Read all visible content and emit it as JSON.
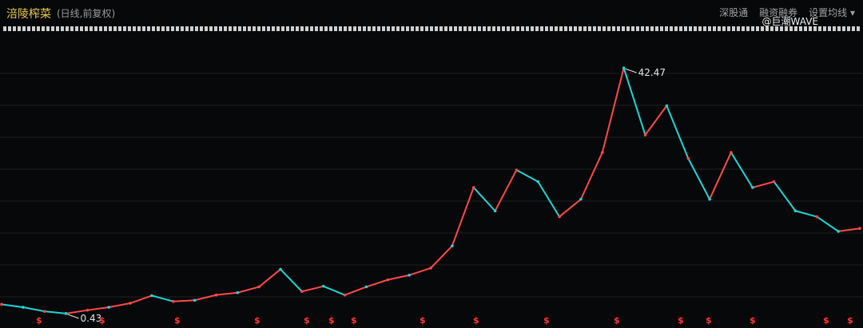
{
  "header": {
    "title": "涪陵榨菜",
    "subtitle": "(日线,前复权)",
    "menu": [
      "深股通",
      "融资融券",
      "设置均线"
    ],
    "dropdown_icon": "chevron-down-icon"
  },
  "watermark": "@巨潮WAVE",
  "markers": {
    "icon": "dollar-sign-icon",
    "label": "$",
    "count": 16,
    "color": "#ff3838"
  },
  "colors": {
    "background": "#07080a",
    "up": "#ff4a4a",
    "down": "#20d6d6",
    "grid": "#202123",
    "annotation": "#e6e6e6"
  },
  "chart_data": {
    "type": "line",
    "title": "",
    "xlabel": "",
    "ylabel": "",
    "ylim": [
      0,
      47
    ],
    "grid": true,
    "series": [
      {
        "name": "",
        "x": [
          0,
          5,
          10,
          15,
          20,
          25,
          30,
          35,
          40,
          45,
          50,
          55,
          60,
          65,
          70,
          75,
          80,
          85,
          90,
          95,
          100,
          105,
          110,
          115,
          120,
          125,
          130,
          135,
          140,
          145,
          150,
          155,
          160,
          165,
          170,
          175,
          180,
          185,
          190,
          195,
          200
        ],
        "values": [
          2.0,
          1.5,
          0.8,
          0.43,
          1.0,
          1.5,
          2.2,
          3.5,
          2.5,
          2.7,
          3.6,
          4.0,
          5.0,
          8.0,
          4.2,
          5.1,
          3.6,
          5.0,
          6.2,
          7.0,
          8.2,
          12.0,
          22.0,
          18.0,
          25.0,
          23.0,
          17.0,
          20.0,
          28.0,
          42.47,
          31.0,
          36.0,
          27.0,
          20.0,
          28.0,
          22.0,
          23.0,
          18.0,
          17.0,
          14.5,
          15.0
        ]
      }
    ],
    "annotations": [
      {
        "label": "42.47",
        "value": 42.47
      },
      {
        "label": "0.43",
        "value": 0.43
      }
    ]
  }
}
